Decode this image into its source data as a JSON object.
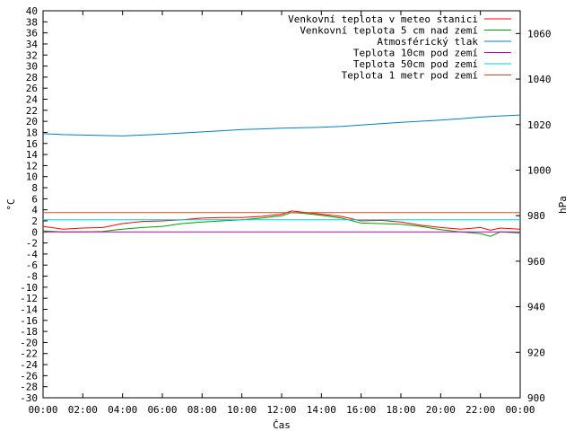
{
  "chart_data": {
    "type": "line",
    "xlabel": "Čas",
    "ylabel_left": "°C",
    "ylabel_right": "hPa",
    "y_left_range": [
      -30,
      40
    ],
    "y_right_range": [
      900,
      1070
    ],
    "x_ticks": [
      "00:00",
      "02:00",
      "04:00",
      "06:00",
      "08:00",
      "10:00",
      "12:00",
      "14:00",
      "16:00",
      "18:00",
      "20:00",
      "22:00",
      "00:00"
    ],
    "y_left_ticks": [
      -30,
      -28,
      -26,
      -24,
      -22,
      -20,
      -18,
      -16,
      -14,
      -12,
      -10,
      -8,
      -6,
      -4,
      -2,
      0,
      2,
      4,
      6,
      8,
      10,
      12,
      14,
      16,
      18,
      20,
      22,
      24,
      26,
      28,
      30,
      32,
      34,
      36,
      38,
      40
    ],
    "y_right_ticks": [
      900,
      920,
      940,
      960,
      980,
      1000,
      1020,
      1040,
      1060
    ],
    "x_hours_range": [
      0,
      24
    ],
    "legend_position": "top-right",
    "grid": false,
    "series": [
      {
        "name": "Venkovní teplota v meteo stanici",
        "color": "#ff0000",
        "axis": "left",
        "x": [
          0,
          1,
          2,
          3,
          4,
          5,
          6,
          7,
          8,
          9,
          10,
          11,
          12,
          12.5,
          13,
          14,
          15,
          16,
          17,
          18,
          19,
          20,
          21,
          22,
          22.5,
          23,
          24
        ],
        "values": [
          1.0,
          0.5,
          0.7,
          0.8,
          1.5,
          1.9,
          2.0,
          2.2,
          2.5,
          2.6,
          2.6,
          2.8,
          3.2,
          3.8,
          3.6,
          3.2,
          2.8,
          2.0,
          2.1,
          1.8,
          1.2,
          0.8,
          0.5,
          0.8,
          0.3,
          0.7,
          0.5
        ]
      },
      {
        "name": "Venkovní teplota 5 cm nad zemí",
        "color": "#00a000",
        "axis": "left",
        "x": [
          0,
          1,
          2,
          3,
          4,
          5,
          6,
          7,
          8,
          9,
          10,
          11,
          12,
          12.5,
          13,
          14,
          15,
          16,
          17,
          18,
          19,
          20,
          21,
          22,
          22.5,
          23,
          24
        ],
        "values": [
          0.2,
          0.0,
          0.0,
          0.1,
          0.5,
          0.8,
          1.0,
          1.5,
          1.8,
          2.0,
          2.2,
          2.5,
          2.9,
          3.5,
          3.4,
          3.0,
          2.5,
          1.6,
          1.5,
          1.4,
          1.0,
          0.4,
          0.0,
          -0.3,
          -0.8,
          0.0,
          -0.2
        ]
      },
      {
        "name": "Atmosférický tlak",
        "color": "#0080c0",
        "axis": "right",
        "x": [
          0,
          1,
          2,
          3,
          4,
          5,
          6,
          7,
          8,
          9,
          10,
          11,
          12,
          13,
          14,
          15,
          16,
          17,
          18,
          19,
          20,
          21,
          22,
          23,
          24
        ],
        "values": [
          1016.0,
          1015.6,
          1015.4,
          1015.2,
          1015.0,
          1015.4,
          1015.8,
          1016.3,
          1016.8,
          1017.3,
          1017.8,
          1018.1,
          1018.4,
          1018.6,
          1018.8,
          1019.2,
          1019.8,
          1020.4,
          1021.0,
          1021.5,
          1022.0,
          1022.6,
          1023.3,
          1023.8,
          1024.2
        ]
      },
      {
        "name": "Teplota 10cm pod zemí",
        "color": "#c000c0",
        "axis": "left",
        "x": [
          0,
          24
        ],
        "values": [
          0.0,
          0.0
        ]
      },
      {
        "name": "Teplota 50cm pod zemí",
        "color": "#00d0d0",
        "axis": "left",
        "x": [
          0,
          24
        ],
        "values": [
          2.2,
          2.2
        ]
      },
      {
        "name": "Teplota 1 metr pod zemí",
        "color": "#c05020",
        "axis": "left",
        "x": [
          0,
          24
        ],
        "values": [
          3.5,
          3.5
        ]
      }
    ]
  }
}
